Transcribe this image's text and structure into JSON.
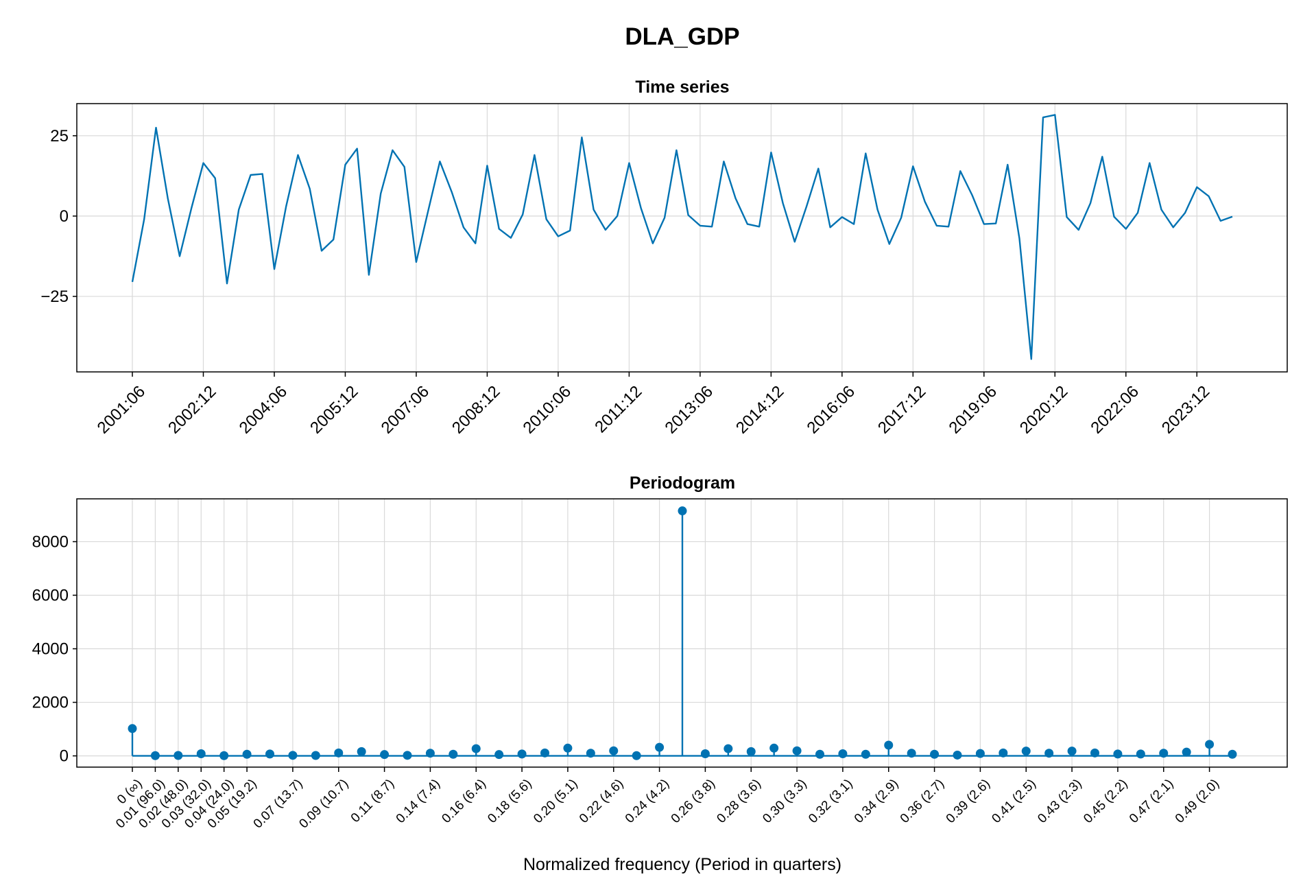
{
  "figure_title": "DLA_GDP",
  "chart_data": [
    {
      "type": "line",
      "title": "Time series",
      "xlabel": "",
      "ylabel": "",
      "x_start": "2001:06",
      "x_step": "quarter",
      "xtick_labels": [
        "2001:06",
        "2002:12",
        "2004:06",
        "2005:12",
        "2007:06",
        "2008:12",
        "2010:06",
        "2011:12",
        "2013:06",
        "2014:12",
        "2016:06",
        "2017:12",
        "2019:06",
        "2020:12",
        "2022:06",
        "2023:12"
      ],
      "yticks": [
        -25,
        0,
        25
      ],
      "ylim": [
        -48.5,
        35
      ],
      "grid": true,
      "color": "#0072b2",
      "values": [
        -20.5,
        -1,
        27.5,
        5.5,
        -12.5,
        2.5,
        16.5,
        11.8,
        -21,
        2,
        12.8,
        13.1,
        -16.5,
        3,
        19,
        8.5,
        -10.8,
        -7.3,
        16,
        21,
        -18.3,
        7,
        20.5,
        15.3,
        -14.3,
        1.5,
        17,
        7.5,
        -3.5,
        -8.5,
        15.7,
        -4,
        -6.8,
        0.5,
        19,
        -1,
        -6.3,
        -4.5,
        24.5,
        2,
        -4.3,
        0,
        16.5,
        2.5,
        -8.5,
        -0.5,
        20.5,
        0.3,
        -3,
        -3.3,
        17,
        5.5,
        -2.5,
        -3.3,
        19.8,
        4,
        -8,
        3,
        14.8,
        -3.5,
        -0.3,
        -2.5,
        19.5,
        2,
        -8.7,
        -0.5,
        15.5,
        4.5,
        -3,
        -3.3,
        14,
        6.5,
        -2.5,
        -2.3,
        16,
        -7,
        -44.5,
        30.7,
        31.5,
        -0.3,
        -4.3,
        4,
        18.5,
        -0.2,
        -4,
        1,
        16.5,
        2,
        -3.5,
        1,
        9,
        6.2,
        -1.5,
        -0.2
      ]
    },
    {
      "type": "stem",
      "title": "Periodogram",
      "xlabel": "Normalized frequency (Period in quarters)",
      "ylabel": "",
      "x_range": [
        0,
        0.5
      ],
      "xtick_labels": [
        "0 (∞)",
        "0.01 (96.0)",
        "0.02 (48.0)",
        "0.03 (32.0)",
        "0.04 (24.0)",
        "0.05 (19.2)",
        "0.07 (13.7)",
        "0.09 (10.7)",
        "0.11 (8.7)",
        "0.14 (7.4)",
        "0.16 (6.4)",
        "0.18 (5.6)",
        "0.20 (5.1)",
        "0.22 (4.6)",
        "0.24 (4.2)",
        "0.26 (3.8)",
        "0.28 (3.6)",
        "0.30 (3.3)",
        "0.32 (3.1)",
        "0.34 (2.9)",
        "0.36 (2.7)",
        "0.39 (2.6)",
        "0.41 (2.5)",
        "0.43 (2.3)",
        "0.45 (2.2)",
        "0.47 (2.1)",
        "0.49 (2.0)"
      ],
      "yticks": [
        0,
        2000,
        4000,
        6000,
        8000
      ],
      "ylim": [
        -420,
        9600
      ],
      "grid": true,
      "color": "#0072b2",
      "values": [
        1020,
        10,
        15,
        80,
        10,
        60,
        70,
        20,
        15,
        110,
        160,
        50,
        20,
        100,
        60,
        270,
        50,
        70,
        110,
        290,
        100,
        190,
        10,
        320,
        9150,
        80,
        270,
        160,
        290,
        190,
        60,
        80,
        60,
        400,
        100,
        60,
        30,
        90,
        110,
        180,
        100,
        180,
        110,
        70,
        70,
        100,
        140,
        430,
        60
      ]
    }
  ]
}
